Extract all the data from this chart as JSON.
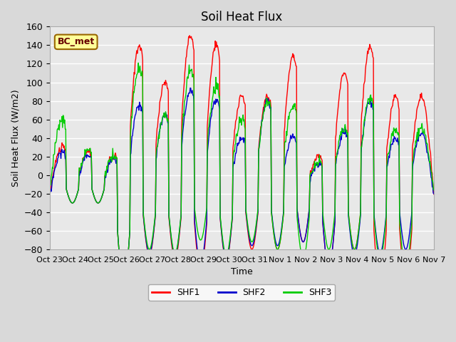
{
  "title": "Soil Heat Flux",
  "xlabel": "Time",
  "ylabel": "Soil Heat Flux (W/m2)",
  "ylim": [
    -80,
    160
  ],
  "yticks": [
    -80,
    -60,
    -40,
    -20,
    0,
    20,
    40,
    60,
    80,
    100,
    120,
    140,
    160
  ],
  "xtick_labels": [
    "Oct 23",
    "Oct 24",
    "Oct 25",
    "Oct 26",
    "Oct 27",
    "Oct 28",
    "Oct 29",
    "Oct 30",
    "Oct 31",
    "Nov 1",
    "Nov 2",
    "Nov 3",
    "Nov 4",
    "Nov 5",
    "Nov 6",
    "Nov 7"
  ],
  "colors": {
    "SHF1": "#ff0000",
    "SHF2": "#0000cc",
    "SHF3": "#00cc00"
  },
  "legend_label": "BC_met",
  "legend_facecolor": "#ffff99",
  "legend_edgecolor": "#996600",
  "background_color": "#d9d9d9",
  "plot_bg_color": "#e8e8e8",
  "grid_color": "#ffffff",
  "linewidth": 1.0,
  "num_days": 15,
  "points_per_day": 48
}
